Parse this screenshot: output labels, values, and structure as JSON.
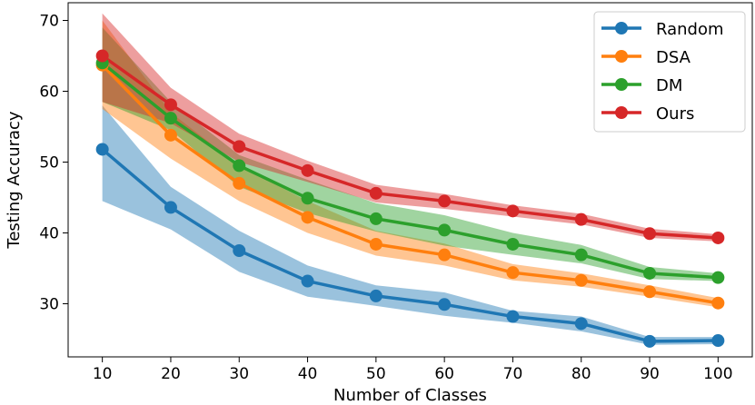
{
  "chart_data": {
    "type": "line",
    "title": "",
    "xlabel": "Number of Classes",
    "ylabel": "Testing Accuracy",
    "x": [
      10,
      20,
      30,
      40,
      50,
      60,
      70,
      80,
      90,
      100
    ],
    "x_ticks": [
      "10",
      "20",
      "30",
      "40",
      "50",
      "60",
      "70",
      "80",
      "90",
      "100"
    ],
    "y_ticks": [
      "30",
      "40",
      "50",
      "60",
      "70"
    ],
    "xlim": [
      5,
      105
    ],
    "ylim": [
      22.5,
      72.5
    ],
    "grid": false,
    "legend_position": "top-right",
    "series": [
      {
        "name": "Random",
        "color": "#1f77b4",
        "values": [
          51.8,
          43.6,
          37.5,
          33.2,
          31.1,
          29.9,
          28.2,
          27.2,
          24.7,
          24.8
        ],
        "lower": [
          44.5,
          40.5,
          34.5,
          31.0,
          29.7,
          28.3,
          27.3,
          26.1,
          24.2,
          24.3
        ],
        "upper": [
          58.0,
          46.5,
          40.3,
          35.4,
          32.6,
          31.6,
          29.0,
          28.2,
          25.3,
          25.3
        ]
      },
      {
        "name": "DSA",
        "color": "#ff7f0e",
        "values": [
          63.7,
          53.8,
          47.0,
          42.2,
          38.4,
          36.9,
          34.4,
          33.3,
          31.7,
          30.1
        ],
        "lower": [
          57.5,
          50.5,
          44.5,
          40.0,
          36.8,
          35.4,
          33.3,
          32.4,
          31.0,
          29.5
        ],
        "upper": [
          70.0,
          57.0,
          49.5,
          44.5,
          40.3,
          38.5,
          35.6,
          34.3,
          32.6,
          30.8
        ]
      },
      {
        "name": "DM",
        "color": "#2ca02c",
        "values": [
          64.0,
          56.2,
          49.5,
          44.9,
          42.0,
          40.4,
          38.4,
          36.9,
          34.3,
          33.7
        ],
        "lower": [
          58.5,
          54.5,
          46.5,
          42.8,
          40.2,
          38.2,
          36.9,
          35.7,
          33.5,
          33.2
        ],
        "upper": [
          69.0,
          58.5,
          51.0,
          47.5,
          44.2,
          42.5,
          40.0,
          38.3,
          35.2,
          34.3
        ]
      },
      {
        "name": "Ours",
        "color": "#d62728",
        "values": [
          65.0,
          58.1,
          52.2,
          48.8,
          45.6,
          44.5,
          43.1,
          41.9,
          39.9,
          39.3
        ],
        "lower": [
          58.5,
          55.5,
          50.0,
          47.2,
          44.3,
          43.4,
          42.3,
          41.2,
          39.3,
          38.8
        ],
        "upper": [
          71.0,
          60.5,
          54.0,
          50.2,
          46.8,
          45.5,
          43.9,
          42.7,
          40.6,
          39.8
        ]
      }
    ]
  }
}
